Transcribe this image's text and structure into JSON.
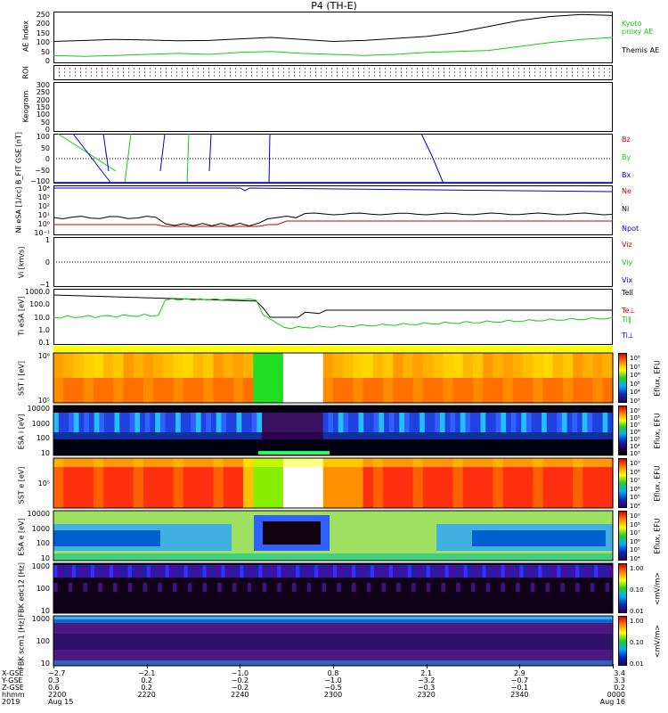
{
  "title": "P4 (TH-E)",
  "colors": {
    "black": "#000000",
    "red": "#cc0000",
    "green": "#11cc11",
    "blue": "#0000cc"
  },
  "chart_data": [
    {
      "type": "line",
      "ylabel": "AE Index",
      "yticks": [
        "250",
        "200",
        "150",
        "100",
        "50",
        "0"
      ],
      "ylim": [
        0,
        250
      ],
      "legend": [
        "Kyoto proxy AE",
        "Themis AE"
      ],
      "series": [
        {
          "name": "Themis AE",
          "color": "#000000",
          "values": [
            105,
            110,
            115,
            112,
            108,
            110,
            118,
            125,
            115,
            105,
            110,
            120,
            130,
            150,
            180,
            210,
            230,
            240,
            235
          ]
        },
        {
          "name": "Kyoto proxy AE",
          "color": "#11cc11",
          "values": [
            35,
            30,
            35,
            40,
            45,
            40,
            50,
            55,
            45,
            40,
            35,
            40,
            50,
            55,
            60,
            80,
            100,
            115,
            125
          ]
        }
      ]
    },
    {
      "type": "scatter",
      "ylabel": "ROI"
    },
    {
      "type": "line",
      "ylabel": "Keogram",
      "yticks": [
        "300",
        "250",
        "200",
        "150",
        "100",
        "50",
        "0"
      ]
    },
    {
      "type": "line",
      "ylabel": "B_FIT GSE [nT]",
      "yticks": [
        "100",
        "50",
        "0",
        "−50",
        "−100"
      ],
      "ylim": [
        -100,
        100
      ],
      "legend": [
        "Bz",
        "By",
        "Bx"
      ]
    },
    {
      "type": "line",
      "ylabel": "Ni eSA [1/cc]",
      "yticks": [
        "10⁴",
        "10³",
        "10²",
        "10¹",
        "10⁰",
        "10⁻¹"
      ],
      "legend": [
        "Ne",
        "Ni",
        "Npot"
      ]
    },
    {
      "type": "line",
      "ylabel": "Vi [km/s]",
      "yticks": [
        "1",
        "0",
        "−1"
      ],
      "legend": [
        "Viz",
        "Viy",
        "Vix"
      ]
    },
    {
      "type": "line",
      "ylabel": "Ti eSA [eV]",
      "yticks": [
        "1000.0",
        "100.0",
        "10.0",
        "1.0",
        "0.1"
      ],
      "legend": [
        "Tell",
        "Te⊥",
        "Ti‖",
        "Ti⊥"
      ]
    },
    {
      "type": "heatmap",
      "ylabel": "SST i [eV]",
      "yticks": [
        "10⁶",
        "10⁵"
      ],
      "colorbar": {
        "label": "Eflux, EFU",
        "ticks": [
          "10⁸",
          "10⁷",
          "10⁶",
          "10⁵",
          "10⁴",
          "10³"
        ]
      }
    },
    {
      "type": "heatmap",
      "ylabel": "ESA i [eV]",
      "yticks": [
        "10000",
        "1000",
        "100",
        "10"
      ],
      "colorbar": {
        "label": "Eflux, EFU",
        "ticks": [
          "10⁹",
          "10⁸",
          "10⁷",
          "10⁶",
          "10⁵",
          "10⁴",
          "10³"
        ]
      }
    },
    {
      "type": "heatmap",
      "ylabel": "SST e [eV]",
      "yticks": [
        "10⁵"
      ],
      "colorbar": {
        "label": "Eflux, EFU",
        "ticks": [
          "10⁹",
          "10⁸",
          "10⁷",
          "10⁶",
          "10⁵",
          "10⁴"
        ]
      }
    },
    {
      "type": "heatmap",
      "ylabel": "ESA e [eV]",
      "yticks": [
        "10000",
        "1000",
        "100",
        "10"
      ],
      "colorbar": {
        "label": "Eflux, EFU",
        "ticks": [
          "10⁹",
          "10⁸",
          "10⁷",
          "10⁶",
          "10⁵",
          "10⁴"
        ]
      }
    },
    {
      "type": "heatmap",
      "ylabel": "FBK edc12 [Hz]",
      "yticks": [
        "1000",
        "100",
        "10"
      ],
      "colorbar": {
        "label": "<mV/m>",
        "ticks": [
          "1.00",
          "0.10",
          "0.01"
        ]
      }
    },
    {
      "type": "heatmap",
      "ylabel": "FBK scm1 [Hz]",
      "yticks": [
        "1000",
        "100",
        "10"
      ],
      "colorbar": {
        "label": "<mV/m>",
        "ticks": [
          "1.00",
          "0.10",
          "0.01"
        ]
      }
    }
  ],
  "xaxis": {
    "row_labels": [
      "X-GSE",
      "Y-GSE",
      "Z-GSE",
      "hhmm",
      "2019"
    ],
    "columns": [
      [
        "−2.7",
        "0.3",
        "0.6",
        "2200",
        "Aug 15"
      ],
      [
        "−2.1",
        "0.2",
        "0.2",
        "2220",
        ""
      ],
      [
        "−1.0",
        "−0.2",
        "−0.2",
        "2240",
        ""
      ],
      [
        "0.8",
        "−1.0",
        "−0.5",
        "2300",
        ""
      ],
      [
        "2.1",
        "−3.2",
        "−0.3",
        "2320",
        ""
      ],
      [
        "2.9",
        "−0.7",
        "−0.1",
        "2340",
        ""
      ],
      [
        "3.4",
        "3.3",
        "0.2",
        "0000",
        "Aug 16"
      ]
    ]
  }
}
